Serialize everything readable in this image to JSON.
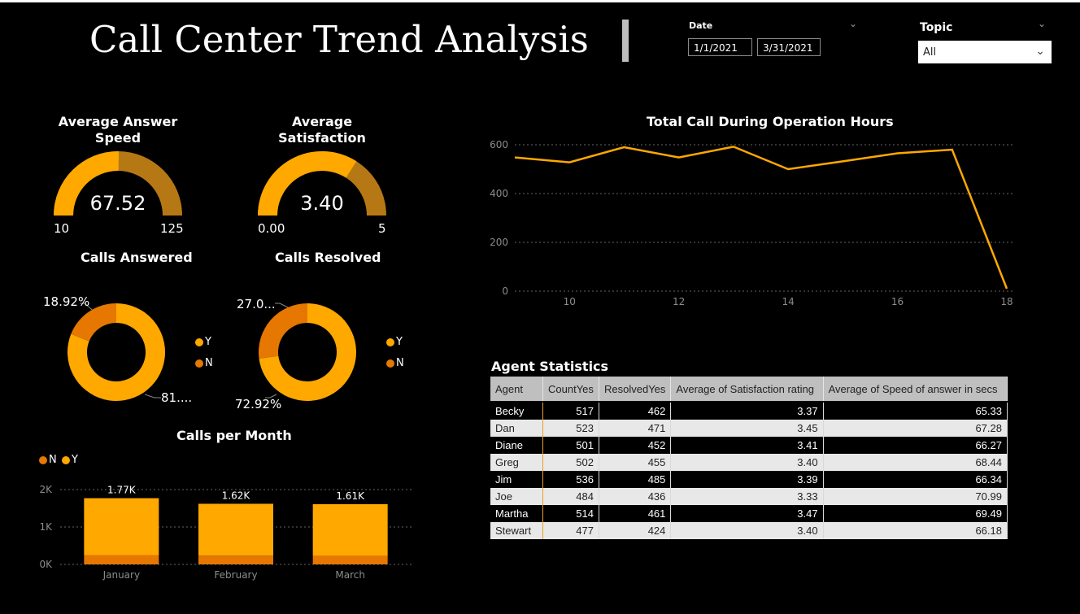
{
  "header": {
    "title": "Call Center Trend Analysis",
    "date_label": "Date",
    "date_start": "1/1/2021",
    "date_end": "3/31/2021",
    "topic_label": "Topic",
    "topic_value": "All"
  },
  "colors": {
    "accent": "#FFA800",
    "accent_dark": "#B67814",
    "n_color": "#E67700",
    "background": "#000000"
  },
  "kpis": {
    "answer_speed": {
      "title": "Average Answer Speed",
      "value": "67.52",
      "min": "10",
      "max": "125",
      "fraction": 0.504
    },
    "satisfaction": {
      "title": "Average Satisfaction",
      "value": "3.40",
      "min": "0.00",
      "max": "5",
      "fraction": 0.68
    }
  },
  "donuts": {
    "answered": {
      "title": "Calls Answered",
      "n_pct": 18.92,
      "n_label": "18.92%",
      "y_label": "81....",
      "legend_y": "Y",
      "legend_n": "N"
    },
    "resolved": {
      "title": "Calls Resolved",
      "n_pct": 27.08,
      "n_label": "27.0...",
      "y_label": "72.92%",
      "legend_y": "Y",
      "legend_n": "N"
    }
  },
  "chart_data": [
    {
      "type": "line",
      "title": "Total Call During Operation Hours",
      "x": [
        9,
        10,
        11,
        12,
        13,
        14,
        15,
        16,
        17,
        18
      ],
      "y": [
        548,
        528,
        590,
        548,
        592,
        500,
        532,
        565,
        580,
        10
      ],
      "xticks": [
        "10",
        "12",
        "14",
        "16",
        "18"
      ],
      "yticks": [
        "0",
        "200",
        "400",
        "600"
      ],
      "xlim": [
        9,
        18
      ],
      "ylim": [
        0,
        620
      ],
      "grid": true
    },
    {
      "type": "bar",
      "title": "Calls per Month",
      "categories": [
        "January",
        "February",
        "March"
      ],
      "series": [
        {
          "name": "N",
          "values": [
            250,
            235,
            230
          ]
        },
        {
          "name": "Y",
          "values": [
            1520,
            1385,
            1380
          ]
        }
      ],
      "totals": [
        "1.77K",
        "1.62K",
        "1.61K"
      ],
      "yticks": [
        "0K",
        "1K",
        "2K"
      ],
      "ylim": [
        0,
        2000
      ],
      "legend": [
        "N",
        "Y"
      ],
      "grid": true
    }
  ],
  "agent_stats": {
    "title": "Agent Statistics",
    "columns": [
      "Agent",
      "CountYes",
      "ResolvedYes",
      "Average of Satisfaction rating",
      "Average of Speed of answer in secs"
    ],
    "rows": [
      [
        "Becky",
        "517",
        "462",
        "3.37",
        "65.33"
      ],
      [
        "Dan",
        "523",
        "471",
        "3.45",
        "67.28"
      ],
      [
        "Diane",
        "501",
        "452",
        "3.41",
        "66.27"
      ],
      [
        "Greg",
        "502",
        "455",
        "3.40",
        "68.44"
      ],
      [
        "Jim",
        "536",
        "485",
        "3.39",
        "66.34"
      ],
      [
        "Joe",
        "484",
        "436",
        "3.33",
        "70.99"
      ],
      [
        "Martha",
        "514",
        "461",
        "3.47",
        "69.49"
      ],
      [
        "Stewart",
        "477",
        "424",
        "3.40",
        "66.18"
      ]
    ]
  }
}
